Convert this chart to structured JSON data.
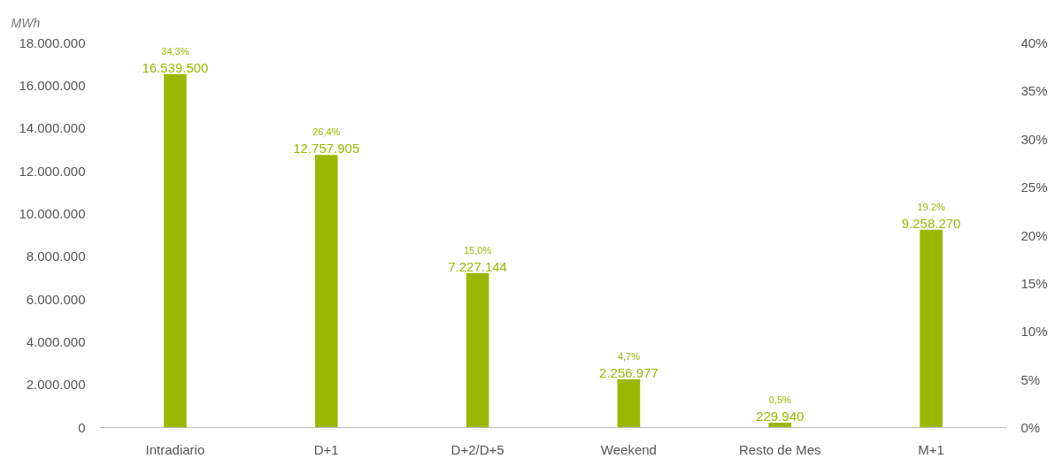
{
  "chart_data": {
    "type": "bar",
    "ylabel": "MWh",
    "categories": [
      "Intradiario",
      "D+1",
      "D+2/D+5",
      "Weekend",
      "Resto de Mes",
      "M+1"
    ],
    "values": [
      16539500,
      12757905,
      7227144,
      2256977,
      229940,
      9258270
    ],
    "value_labels": [
      "16.539.500",
      "12.757.905",
      "7.227.144",
      "2.256.977",
      "229.940",
      "9.258.270"
    ],
    "color": "#9bb800",
    "ylim": [
      0,
      18000000
    ],
    "yticks": [
      {
        "value": 0,
        "label": "0"
      },
      {
        "value": 2000000,
        "label": "2.000.000"
      },
      {
        "value": 4000000,
        "label": "4.000.000"
      },
      {
        "value": 6000000,
        "label": "6.000.000"
      },
      {
        "value": 8000000,
        "label": "8.000.000"
      },
      {
        "value": 10000000,
        "label": "10.000.000"
      },
      {
        "value": 12000000,
        "label": "12.000.000"
      },
      {
        "value": 14000000,
        "label": "14.000.000"
      },
      {
        "value": 16000000,
        "label": "16.000.000"
      },
      {
        "value": 18000000,
        "label": "18.000.000"
      }
    ],
    "y2lim": [
      0,
      40
    ],
    "y2ticks": [
      {
        "value": 0,
        "label": "0%"
      },
      {
        "value": 5,
        "label": "5%"
      },
      {
        "value": 10,
        "label": "10%"
      },
      {
        "value": 15,
        "label": "15%"
      },
      {
        "value": 20,
        "label": "20%"
      },
      {
        "value": 25,
        "label": "25%"
      },
      {
        "value": 30,
        "label": "30%"
      },
      {
        "value": 35,
        "label": "35%"
      },
      {
        "value": 40,
        "label": "40%"
      }
    ],
    "annotations": [
      {
        "text": "34,3%",
        "x": "Intradiario",
        "y": 16539500
      },
      {
        "text": "26,4%",
        "x": "D+1",
        "y": 12757905
      },
      {
        "text": "15,0%",
        "x": "D+2/D+5",
        "y": 7227144
      },
      {
        "text": "4,7%",
        "x": "Weekend",
        "y": 2256977
      },
      {
        "text": "0,5%",
        "x": "Resto de Mes",
        "y": 229940
      },
      {
        "text": "19.2%",
        "x": "M+1",
        "y": 9258270
      }
    ],
    "grid": false
  }
}
